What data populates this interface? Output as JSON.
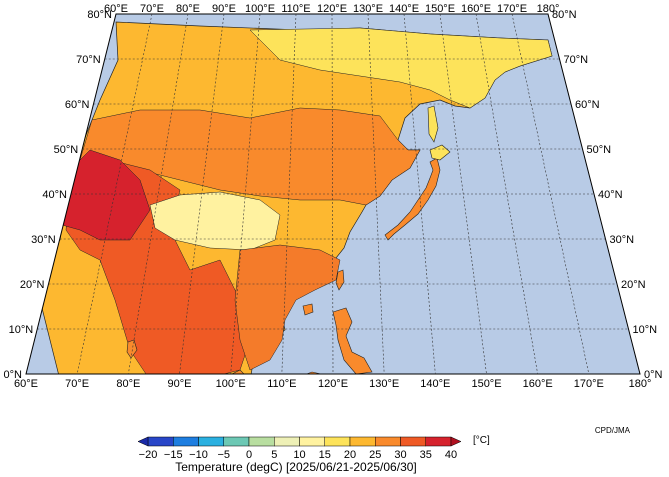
{
  "map": {
    "credit": "CPD/JMA",
    "ocean_color": "#b8cbe6",
    "border_color": "#222222",
    "grid_color": "#333333",
    "lon_labels": [
      "60°E",
      "70°E",
      "80°E",
      "90°E",
      "100°E",
      "110°E",
      "120°E",
      "130°E",
      "140°E",
      "150°E",
      "160°E",
      "170°E",
      "180°"
    ],
    "lat_labels": [
      "0°N",
      "10°N",
      "20°N",
      "30°N",
      "40°N",
      "50°N",
      "60°N",
      "70°N",
      "80°N"
    ],
    "lon_range": [
      60,
      180
    ],
    "lat_range": [
      0,
      80
    ],
    "regions": [
      {
        "name": "northern-asia",
        "temp_class": "20-25",
        "color": "#fdb830"
      },
      {
        "name": "siberia-northeast",
        "temp_class": "15-20",
        "color": "#fde35a"
      },
      {
        "name": "central-asia",
        "temp_class": "25-30",
        "color": "#f98a2c"
      },
      {
        "name": "south-asia",
        "temp_class": "30-35",
        "color": "#ef5a25"
      },
      {
        "name": "pakistan-hotspot",
        "temp_class": "35-40",
        "color": "#d6222d"
      },
      {
        "name": "tibetan-plateau",
        "temp_class": "10-15",
        "color": "#fff2a0"
      },
      {
        "name": "southeast-asia",
        "temp_class": "25-30",
        "color": "#f47b2a"
      }
    ]
  },
  "colorbar": {
    "title": "Temperature (degC) [2025/06/21-2025/06/30]",
    "unit": "[°C]",
    "ticks": [
      "−20",
      "−15",
      "−10",
      "−5",
      "0",
      "5",
      "10",
      "15",
      "20",
      "25",
      "30",
      "35",
      "40"
    ],
    "colors": [
      "#2846c8",
      "#1e7ee0",
      "#2ab0e0",
      "#6cc8b4",
      "#b8dea0",
      "#eef0b6",
      "#fff2a0",
      "#fde35a",
      "#fdb830",
      "#f98a2c",
      "#ef5a25",
      "#d6222d"
    ]
  }
}
